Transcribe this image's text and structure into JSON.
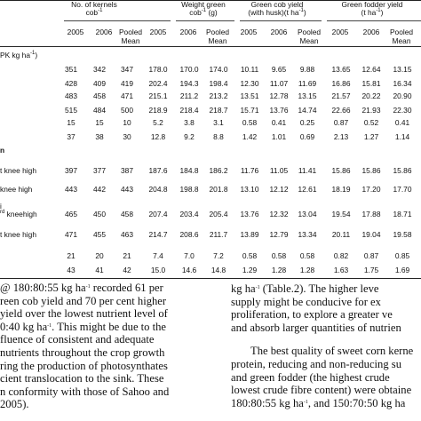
{
  "table": {
    "group_headers": {
      "kernels_line1": "No. of kernels",
      "kernels_line2": "cob",
      "kernels_line2_sup": "-1",
      "weight_line1": "Weight green",
      "weight_line2": "cob",
      "weight_line2_sup": "-1",
      "weight_line2_suffix": " (g)",
      "cobyield_line1": "Green cob yield",
      "cobyield_line2": "(with husk)(t ha",
      "cobyield_line2_sup": "-1",
      "cobyield_line2_suffix": ")",
      "fodder_line1": "Green fodder yield",
      "fodder_line2": "(t ha",
      "fodder_line2_sup": "-1",
      "fodder_line2_suffix": ")"
    },
    "subheaders": {
      "k2005": "2005",
      "k2006": "2006",
      "k_pooled_1": "Pooled",
      "k_pooled_2": "Mean",
      "w2005": "2005",
      "w2006": "2006",
      "w_pooled_1": "Pooled",
      "w_pooled_2": "Mean",
      "c2005": "2005",
      "c2006": "2006",
      "c_pooled_1": "Pooled",
      "c_pooled_2": "Mean",
      "f2005": "2005",
      "f2006": "2006",
      "f_pooled_1": "Pooled",
      "f_pooled_2": "Mean"
    },
    "section1_label": "PK kg ha",
    "section1_label_sup": "-1",
    "section1_label_suffix": ")",
    "section1_rows": [
      [
        "351",
        "342",
        "347",
        "178.0",
        "170.0",
        "174.0",
        "10.11",
        "9.65",
        "9.88",
        "13.65",
        "12.64",
        "13.15"
      ],
      [
        "428",
        "409",
        "419",
        "202.4",
        "194.3",
        "198.4",
        "12.30",
        "11.07",
        "11.69",
        "16.86",
        "15.81",
        "16.34"
      ],
      [
        "483",
        "458",
        "471",
        "215.1",
        "211.2",
        "213.2",
        "13.51",
        "12.78",
        "13.15",
        "21.57",
        "20.22",
        "20.90"
      ],
      [
        "515",
        "484",
        "500",
        "218.9",
        "218.4",
        "218.7",
        "15.71",
        "13.76",
        "14.74",
        "22.66",
        "21.93",
        "22.30"
      ],
      [
        "15",
        "15",
        "10",
        "5.2",
        "3.8",
        "3.1",
        "0.58",
        "0.41",
        "0.25",
        "0.87",
        "0.52",
        "0.41"
      ],
      [
        "37",
        "38",
        "30",
        "12.8",
        "9.2",
        "8.8",
        "1.42",
        "1.01",
        "0.69",
        "2.13",
        "1.27",
        "1.14"
      ]
    ],
    "section2_label": "n",
    "section2_rows": [
      {
        "label": "t knee high",
        "values": [
          "397",
          "377",
          "387",
          "187.6",
          "184.8",
          "186.2",
          "11.76",
          "11.05",
          "11.41",
          "15.86",
          "15.86",
          "15.86"
        ]
      },
      {
        "label": "knee high",
        "values": [
          "443",
          "442",
          "443",
          "204.8",
          "198.8",
          "201.8",
          "13.10",
          "12.12",
          "12.61",
          "18.19",
          "17.20",
          "17.70"
        ]
      },
      {
        "label_pre": "i",
        "label_sup": "rd",
        "label": " kneehigh",
        "values": [
          "465",
          "450",
          "458",
          "207.4",
          "203.4",
          "205.4",
          "13.76",
          "12.32",
          "13.04",
          "19.54",
          "17.88",
          "18.71"
        ]
      },
      {
        "label": "t knee high",
        "values": [
          "471",
          "455",
          "463",
          "214.7",
          "208.6",
          "211.7",
          "13.89",
          "12.79",
          "13.34",
          "20.11",
          "19.04",
          "19.58"
        ]
      }
    ],
    "section2_stat_rows": [
      [
        "21",
        "20",
        "21",
        "7.4",
        "7.0",
        "7.2",
        "0.58",
        "0.58",
        "0.58",
        "0.82",
        "0.87",
        "0.85"
      ],
      [
        "43",
        "41",
        "42",
        "15.0",
        "14.6",
        "14.8",
        "1.29",
        "1.28",
        "1.28",
        "1.63",
        "1.75",
        "1.69"
      ]
    ]
  },
  "text_left": [
    "@ 180:80:55 kg ha",
    "-1",
    " recorded 61 per",
    "reen cob yield and 70 per cent higher",
    " yield over the lowest nutrient level of",
    "0:40 kg ha",
    "-1",
    ". This might be due to the",
    "fluence of consistent and adequate",
    " nutrients throughout the crop growth",
    "ring the production of photosynthates",
    "cient translocation to the sink. These",
    "n conformity with those of Sahoo and",
    "2005)."
  ],
  "text_right": [
    "kg ha",
    "-1",
    " (Table.2). The higher leve",
    "supply might be conducive for ex",
    "proliferation, to explore a greater ve",
    "and absorb larger quantities of nutrien",
    "The best quality of sweet corn kerne",
    "protein, reducing and non-reducing su",
    "and green fodder (the highest crude",
    "lowest crude fibre content) were obtaine",
    "180:80:55 kg ha",
    "-1",
    ", and 150:70:50 kg ha"
  ]
}
